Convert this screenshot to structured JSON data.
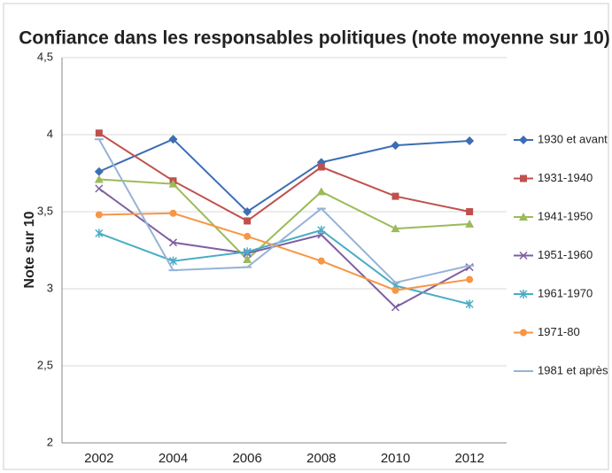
{
  "chart_data": {
    "type": "line",
    "title": "Confiance dans les responsables politiques (note moyenne sur 10)",
    "y_label": "Note sur 10",
    "categories": [
      "2002",
      "2004",
      "2006",
      "2008",
      "2010",
      "2012"
    ],
    "ylim": [
      2,
      4.5
    ],
    "yticks": [
      2,
      {
        "value": 2.5,
        "label": "2,5"
      },
      3,
      {
        "value": 3.5,
        "label": "3,5"
      },
      4,
      {
        "value": 4.5,
        "label": "4,5"
      }
    ],
    "grid": true,
    "legend": "right",
    "series": [
      {
        "name": "1930 et avant",
        "color": "#3c6eb4",
        "marker": "diamond",
        "values": [
          3.76,
          3.97,
          3.5,
          3.82,
          3.93,
          3.96
        ]
      },
      {
        "name": "1931-1940",
        "color": "#c0504d",
        "marker": "square",
        "values": [
          4.01,
          3.7,
          3.44,
          3.79,
          3.6,
          3.5
        ]
      },
      {
        "name": "1941-1950",
        "color": "#9bbb59",
        "marker": "triangle",
        "values": [
          3.71,
          3.68,
          3.19,
          3.63,
          3.39,
          3.42
        ]
      },
      {
        "name": "1951-1960",
        "color": "#7f5fa0",
        "marker": "x",
        "values": [
          3.65,
          3.3,
          3.23,
          3.35,
          2.88,
          3.14
        ]
      },
      {
        "name": "1961-1970",
        "color": "#4bacc6",
        "marker": "star",
        "values": [
          3.36,
          3.18,
          3.24,
          3.38,
          3.02,
          2.9
        ]
      },
      {
        "name": "1971-80",
        "color": "#f79646",
        "marker": "circle",
        "values": [
          3.48,
          3.49,
          3.34,
          3.18,
          2.99,
          3.06
        ]
      },
      {
        "name": "1981 et après",
        "color": "#95b3d7",
        "marker": "dash",
        "values": [
          3.97,
          3.12,
          3.14,
          3.52,
          3.04,
          3.15
        ]
      }
    ]
  }
}
